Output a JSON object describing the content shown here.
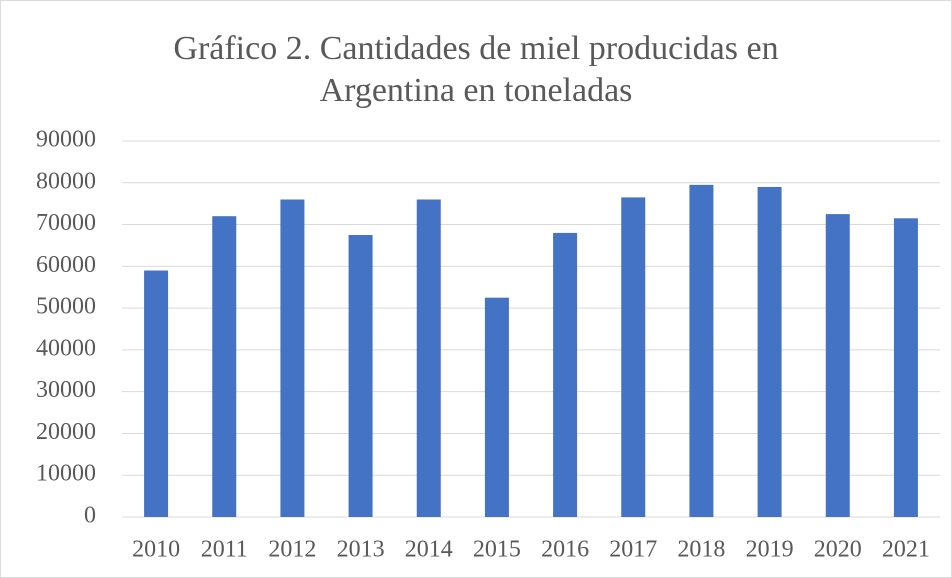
{
  "chart_data": {
    "type": "bar",
    "title": "Gráfico 2. Cantidades de miel producidas en Argentina en toneladas",
    "categories": [
      "2010",
      "2011",
      "2012",
      "2013",
      "2014",
      "2015",
      "2016",
      "2017",
      "2018",
      "2019",
      "2020",
      "2021"
    ],
    "values": [
      59000,
      72000,
      76000,
      67500,
      76000,
      52500,
      68000,
      76500,
      79500,
      79000,
      72500,
      71500
    ],
    "color": "#4472c4",
    "ylim": [
      0,
      90000
    ],
    "yticks": [
      0,
      10000,
      20000,
      30000,
      40000,
      50000,
      60000,
      70000,
      80000,
      90000
    ],
    "grid": true
  }
}
